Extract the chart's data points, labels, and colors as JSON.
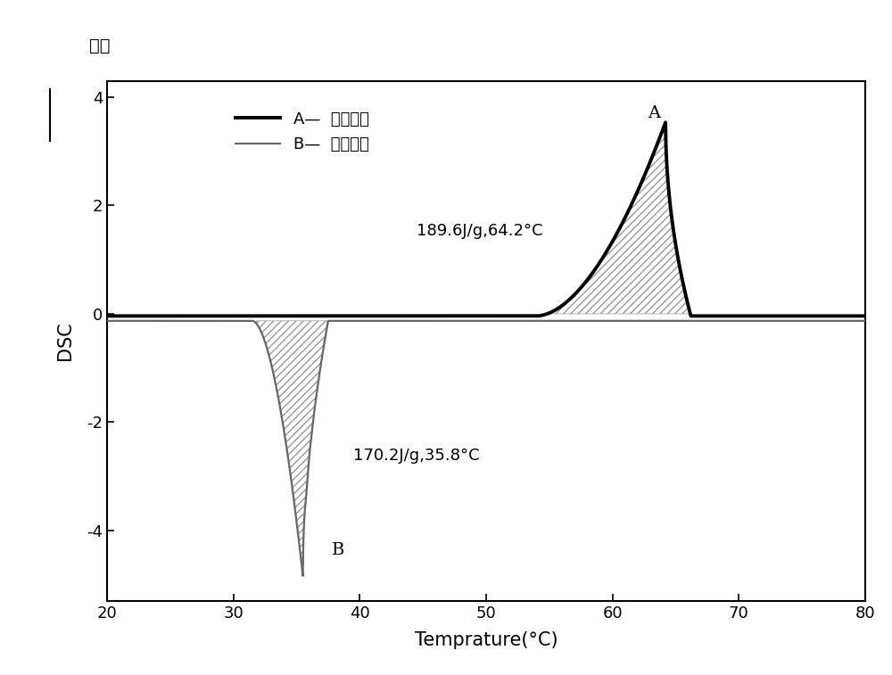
{
  "title_top": "放热",
  "xlabel": "Temprature(°C)",
  "ylabel": "DSC",
  "xlim": [
    20,
    80
  ],
  "ylim": [
    -5.3,
    4.3
  ],
  "yticks": [
    -4,
    -2,
    0,
    2,
    4
  ],
  "xticks": [
    20,
    30,
    40,
    50,
    60,
    70,
    80
  ],
  "legend_A": "A—  二次升温",
  "legend_B": "B—  二次降温",
  "annotation_A": "189.6J/g,64.2°C",
  "annotation_B": "170.2J/g,35.8°C",
  "line_color_A": "#000000",
  "line_color_B": "#666666",
  "hatch_color": "#999999",
  "background_color": "#ffffff",
  "linewidth_A": 2.8,
  "linewidth_B": 1.6
}
